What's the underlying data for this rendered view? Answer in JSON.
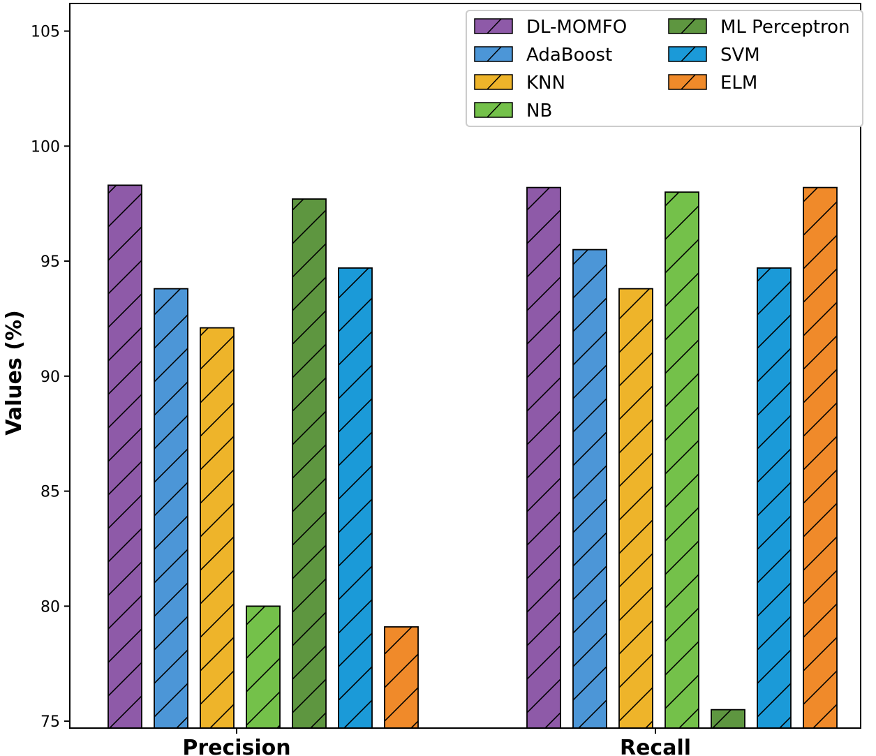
{
  "chart_data": {
    "type": "bar",
    "title": "",
    "xlabel": "",
    "ylabel": "Values (%)",
    "ylim": [
      74.7,
      106.2
    ],
    "yticks": [
      75,
      80,
      85,
      90,
      95,
      100,
      105
    ],
    "categories": [
      "Precision",
      "Recall"
    ],
    "series": [
      {
        "name": "DL-MOMFO",
        "color": "#8e5aa8",
        "values": [
          98.3,
          98.2
        ]
      },
      {
        "name": "AdaBoost",
        "color": "#4c96d7",
        "values": [
          93.8,
          95.5
        ]
      },
      {
        "name": "KNN",
        "color": "#eeb42a",
        "values": [
          92.1,
          93.8
        ]
      },
      {
        "name": "NB",
        "color": "#74c14a",
        "values": [
          80.0,
          98.0
        ]
      },
      {
        "name": "ML Perceptron",
        "color": "#5e9640",
        "values": [
          97.7,
          75.5
        ]
      },
      {
        "name": "SVM",
        "color": "#1b9ad8",
        "values": [
          94.7,
          94.7
        ]
      },
      {
        "name": "ELM",
        "color": "#f08a2a",
        "values": [
          79.1,
          98.2
        ]
      }
    ],
    "hatch": "/",
    "grid": false,
    "legend": {
      "position": "top-right",
      "columns": 2
    }
  }
}
